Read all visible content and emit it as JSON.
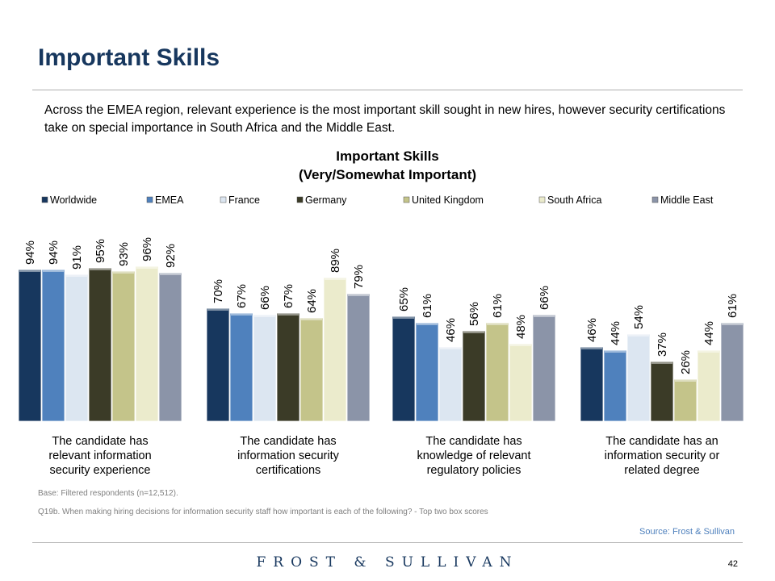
{
  "page": {
    "title": "Important Skills",
    "intro": "Across the EMEA region, relevant experience is the most important skill sought in new hires, however security certifications take on special importance in South Africa and the Middle East.",
    "base_note": "Base: Filtered respondents (n=12,512).",
    "question_note": "Q19b. When making hiring decisions for information security staff how important is each of the following? - Top two box scores",
    "source": "Source: Frost & Sullivan",
    "logo_text": "FROST & SULLIVAN",
    "page_number": "42"
  },
  "chart_data": {
    "type": "bar",
    "title": "Important Skills",
    "subtitle": "(Very/Somewhat Important)",
    "legend_position": "top",
    "grid": false,
    "ylim": [
      0,
      100
    ],
    "value_suffix": "%",
    "categories": [
      "The candidate has relevant information security experience",
      "The candidate has information security certifications",
      "The candidate has knowledge of relevant regulatory policies",
      "The candidate has an information security or related degree"
    ],
    "series": [
      {
        "name": "Worldwide",
        "color": "#17375e",
        "values": [
          94,
          70,
          65,
          46
        ]
      },
      {
        "name": "EMEA",
        "color": "#4f81bd",
        "values": [
          94,
          67,
          61,
          44
        ]
      },
      {
        "name": "France",
        "color": "#dce6f1",
        "values": [
          91,
          66,
          46,
          54
        ]
      },
      {
        "name": "Germany",
        "color": "#3b3b27",
        "values": [
          95,
          67,
          56,
          37
        ]
      },
      {
        "name": "United Kingdom",
        "color": "#c4c48a",
        "values": [
          93,
          64,
          61,
          26
        ]
      },
      {
        "name": "South Africa",
        "color": "#ebebcc",
        "values": [
          96,
          89,
          48,
          44
        ]
      },
      {
        "name": "Middle East",
        "color": "#8b94a8",
        "values": [
          92,
          79,
          66,
          61
        ]
      }
    ]
  }
}
